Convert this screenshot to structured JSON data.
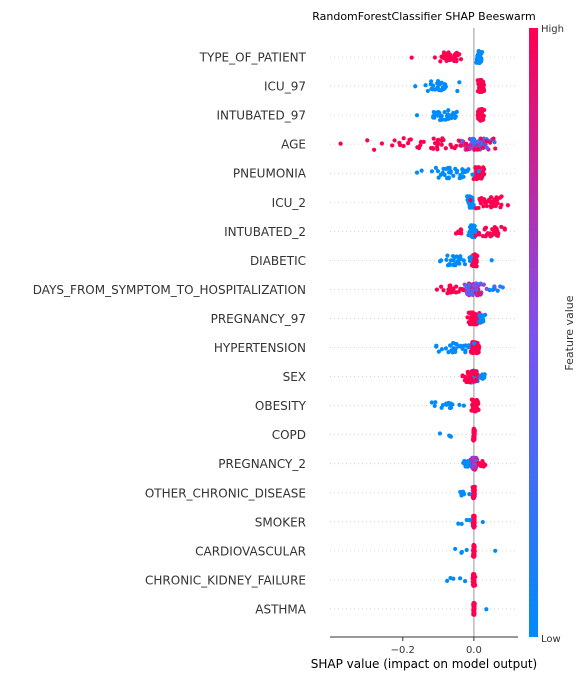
{
  "chart_data": {
    "type": "scatter",
    "subtype": "shap-beeswarm",
    "title": "RandomForestClassifier SHAP Beeswarm",
    "xlabel": "SHAP value (impact on model output)",
    "ylabel": "",
    "xlim": [
      -0.4,
      0.13
    ],
    "xticks": [
      -0.2,
      0.0
    ],
    "xtick_labels": [
      "−0.2",
      "0.0"
    ],
    "grid": false,
    "colorbar": {
      "label": "Feature value",
      "high_label": "High",
      "low_label": "Low",
      "low_color": "#008bfb",
      "mid_color": "#7c52f0",
      "high_color": "#ff0051"
    },
    "features": [
      {
        "name": "TYPE_OF_PATIENT",
        "clusters": [
          {
            "center": 0.015,
            "spread": 0.008,
            "count": 70,
            "fv": 0.0
          },
          {
            "center": -0.07,
            "spread": 0.045,
            "count": 30,
            "fv": 1.0
          },
          {
            "center": -0.175,
            "spread": 0.0,
            "count": 1,
            "fv": 1.0
          }
        ]
      },
      {
        "name": "ICU_97",
        "clusters": [
          {
            "center": 0.02,
            "spread": 0.008,
            "count": 70,
            "fv": 1.0
          },
          {
            "center": -0.095,
            "spread": 0.045,
            "count": 30,
            "fv": 0.0
          },
          {
            "center": -0.165,
            "spread": 0.0,
            "count": 1,
            "fv": 0.0
          }
        ]
      },
      {
        "name": "INTUBATED_97",
        "clusters": [
          {
            "center": 0.02,
            "spread": 0.008,
            "count": 70,
            "fv": 1.0
          },
          {
            "center": -0.095,
            "spread": 0.045,
            "count": 30,
            "fv": 0.0
          },
          {
            "center": -0.16,
            "spread": 0.0,
            "count": 1,
            "fv": 0.0
          }
        ]
      },
      {
        "name": "AGE",
        "clusters": [
          {
            "center": 0.01,
            "spread": 0.04,
            "count": 70,
            "fv": 0.45
          },
          {
            "center": -0.12,
            "spread": 0.15,
            "count": 50,
            "fv": 1.0
          },
          {
            "center": -0.375,
            "spread": 0.0,
            "count": 1,
            "fv": 1.0
          }
        ]
      },
      {
        "name": "PNEUMONIA",
        "clusters": [
          {
            "center": 0.015,
            "spread": 0.015,
            "count": 60,
            "fv": 1.0
          },
          {
            "center": -0.07,
            "spread": 0.07,
            "count": 35,
            "fv": 0.0
          },
          {
            "center": -0.16,
            "spread": 0.0,
            "count": 1,
            "fv": 0.0
          }
        ]
      },
      {
        "name": "ICU_2",
        "clusters": [
          {
            "center": -0.01,
            "spread": 0.008,
            "count": 60,
            "fv": 0.0
          },
          {
            "center": 0.05,
            "spread": 0.05,
            "count": 40,
            "fv": 1.0
          }
        ]
      },
      {
        "name": "INTUBATED_2",
        "clusters": [
          {
            "center": -0.005,
            "spread": 0.01,
            "count": 60,
            "fv": 0.0
          },
          {
            "center": 0.045,
            "spread": 0.035,
            "count": 30,
            "fv": 1.0
          },
          {
            "center": -0.045,
            "spread": 0.015,
            "count": 8,
            "fv": 1.0
          }
        ]
      },
      {
        "name": "DIABETIC",
        "clusters": [
          {
            "center": 0.0,
            "spread": 0.008,
            "count": 60,
            "fv": 1.0
          },
          {
            "center": -0.05,
            "spread": 0.05,
            "count": 30,
            "fv": 0.0
          },
          {
            "center": 0.05,
            "spread": 0.0,
            "count": 1,
            "fv": 0.0
          }
        ]
      },
      {
        "name": "DAYS_FROM_SYMPTOM_TO_HOSPITALIZATION",
        "clusters": [
          {
            "center": 0.0,
            "spread": 0.03,
            "count": 70,
            "fv": 0.55
          },
          {
            "center": -0.05,
            "spread": 0.05,
            "count": 20,
            "fv": 1.0
          },
          {
            "center": 0.06,
            "spread": 0.02,
            "count": 10,
            "fv": 0.2
          }
        ]
      },
      {
        "name": "PREGNANCY_97",
        "clusters": [
          {
            "center": 0.0,
            "spread": 0.015,
            "count": 60,
            "fv": 1.0
          },
          {
            "center": 0.02,
            "spread": 0.012,
            "count": 20,
            "fv": 0.0
          }
        ]
      },
      {
        "name": "HYPERTENSION",
        "clusters": [
          {
            "center": 0.003,
            "spread": 0.012,
            "count": 60,
            "fv": 1.0
          },
          {
            "center": -0.05,
            "spread": 0.05,
            "count": 30,
            "fv": 0.0
          }
        ]
      },
      {
        "name": "SEX",
        "clusters": [
          {
            "center": 0.0,
            "spread": 0.012,
            "count": 40,
            "fv": 0.0
          },
          {
            "center": -0.008,
            "spread": 0.02,
            "count": 40,
            "fv": 1.0
          },
          {
            "center": 0.025,
            "spread": 0.01,
            "count": 10,
            "fv": 0.0
          }
        ]
      },
      {
        "name": "OBESITY",
        "clusters": [
          {
            "center": 0.002,
            "spread": 0.01,
            "count": 50,
            "fv": 1.0
          },
          {
            "center": -0.07,
            "spread": 0.05,
            "count": 15,
            "fv": 0.0
          }
        ]
      },
      {
        "name": "COPD",
        "clusters": [
          {
            "center": 0.0,
            "spread": 0.002,
            "count": 50,
            "fv": 1.0
          },
          {
            "center": -0.06,
            "spread": 0.035,
            "count": 4,
            "fv": 0.0
          }
        ]
      },
      {
        "name": "PREGNANCY_2",
        "clusters": [
          {
            "center": 0.0,
            "spread": 0.008,
            "count": 50,
            "fv": 0.6
          },
          {
            "center": 0.02,
            "spread": 0.012,
            "count": 10,
            "fv": 1.0
          },
          {
            "center": -0.02,
            "spread": 0.01,
            "count": 10,
            "fv": 0.0
          }
        ]
      },
      {
        "name": "OTHER_CHRONIC_DISEASE",
        "clusters": [
          {
            "center": 0.0,
            "spread": 0.003,
            "count": 50,
            "fv": 1.0
          },
          {
            "center": -0.035,
            "spread": 0.02,
            "count": 8,
            "fv": 0.0
          }
        ]
      },
      {
        "name": "SMOKER",
        "clusters": [
          {
            "center": 0.0,
            "spread": 0.003,
            "count": 50,
            "fv": 1.0
          },
          {
            "center": -0.02,
            "spread": 0.02,
            "count": 5,
            "fv": 0.0
          },
          {
            "center": 0.025,
            "spread": 0.0,
            "count": 1,
            "fv": 0.0
          }
        ]
      },
      {
        "name": "CARDIOVASCULAR",
        "clusters": [
          {
            "center": 0.0,
            "spread": 0.002,
            "count": 50,
            "fv": 1.0
          },
          {
            "center": -0.03,
            "spread": 0.02,
            "count": 4,
            "fv": 0.0
          },
          {
            "center": 0.06,
            "spread": 0.0,
            "count": 1,
            "fv": 0.0
          }
        ]
      },
      {
        "name": "CHRONIC_KIDNEY_FAILURE",
        "clusters": [
          {
            "center": 0.0,
            "spread": 0.003,
            "count": 50,
            "fv": 1.0
          },
          {
            "center": -0.04,
            "spread": 0.03,
            "count": 5,
            "fv": 0.0
          }
        ]
      },
      {
        "name": "ASTHMA",
        "clusters": [
          {
            "center": 0.0,
            "spread": 0.002,
            "count": 50,
            "fv": 1.0
          },
          {
            "center": 0.035,
            "spread": 0.0,
            "count": 1,
            "fv": 0.0
          }
        ]
      }
    ]
  }
}
